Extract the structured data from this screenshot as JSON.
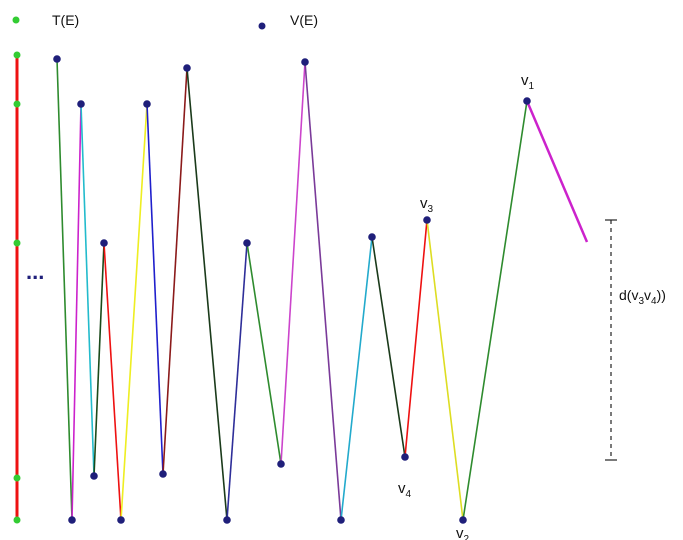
{
  "legend": {
    "t_label": "T(E)",
    "v_label": "V(E)",
    "t_color": "#33cc33",
    "v_color": "#1f1f7a"
  },
  "ellipsis": "...",
  "labels": {
    "v1": {
      "main": "v",
      "sub": "1"
    },
    "v2": {
      "main": "v",
      "sub": "2"
    },
    "v3": {
      "main": "v",
      "sub": "3"
    },
    "v4": {
      "main": "v",
      "sub": "4"
    },
    "distance": {
      "prefix": "d(v",
      "sub_a": "3",
      "mid": "v",
      "sub_b": "4",
      "suffix": "))"
    }
  },
  "colors": {
    "axis": "#ee1111",
    "measure": "#222222",
    "segments": [
      "#2e8b2e",
      "#cc22cc",
      "#22bbcc",
      "#1a4a1a",
      "#ee1111",
      "#eeee22",
      "#1f1fcc",
      "#8b1a1a",
      "#1a3a1a",
      "#2e2e99",
      "#2e8b2e",
      "#cc44cc",
      "#7a3a99",
      "#22aacc",
      "#1a3a1a",
      "#ee1111",
      "#dddd22"
    ]
  }
}
